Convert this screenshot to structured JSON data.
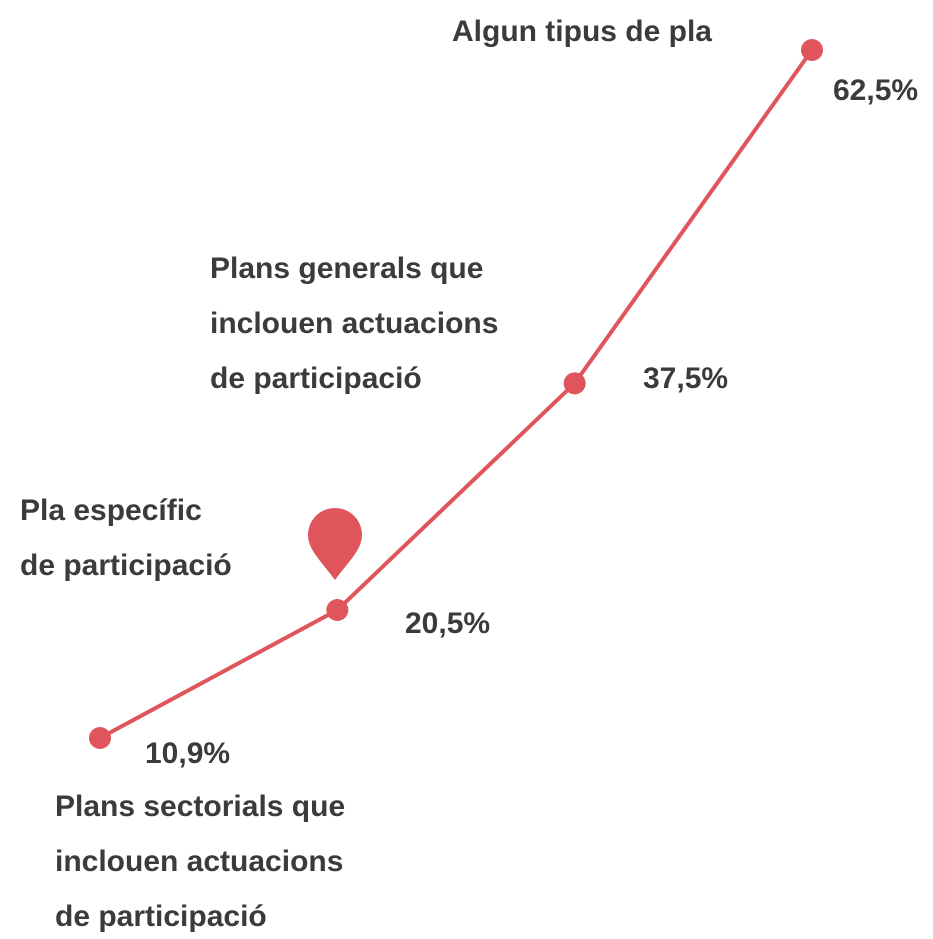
{
  "chart_data": {
    "type": "line",
    "categories": [
      [
        "Plans sectorials que",
        "inclouen actuacions",
        "de participació"
      ],
      [
        "Pla específic",
        "de participació"
      ],
      [
        "Plans generals que",
        "inclouen actuacions",
        "de participació"
      ],
      [
        "Algun tipus de pla"
      ]
    ],
    "values": [
      10.9,
      20.5,
      37.5,
      62.5
    ],
    "value_labels": [
      "10,9%",
      "20,5%",
      "37,5%",
      "62,5%"
    ],
    "color": "#e0555b"
  }
}
